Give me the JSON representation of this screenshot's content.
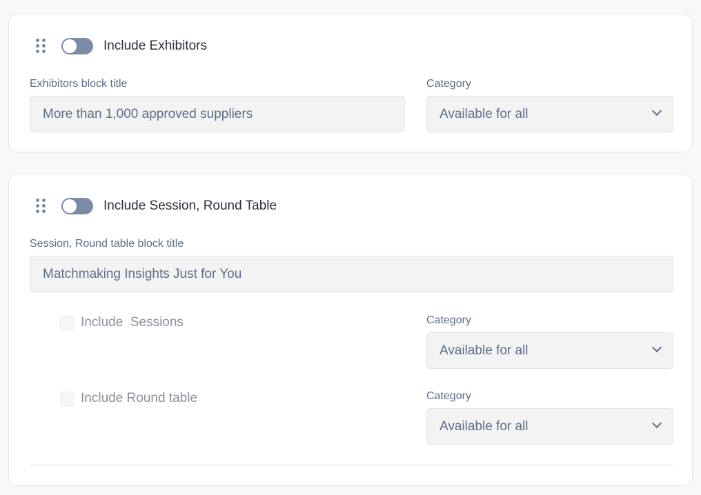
{
  "exhibitors": {
    "toggle_label": "Include Exhibitors",
    "toggle_on": false,
    "title_label": "Exhibitors block title",
    "title_value": "More than 1,000 approved suppliers",
    "category_label": "Category",
    "category_value": "Available for all"
  },
  "sessions": {
    "toggle_label": "Include Session, Round Table",
    "toggle_on": false,
    "title_label": "Session, Round table block title",
    "title_value": "Matchmaking Insights Just for You",
    "items": [
      {
        "label": "Include  Sessions",
        "checked": false,
        "category_label": "Category",
        "category_value": "Available for all"
      },
      {
        "label": "Include Round table",
        "checked": false,
        "category_label": "Category",
        "category_value": "Available for all"
      }
    ]
  }
}
